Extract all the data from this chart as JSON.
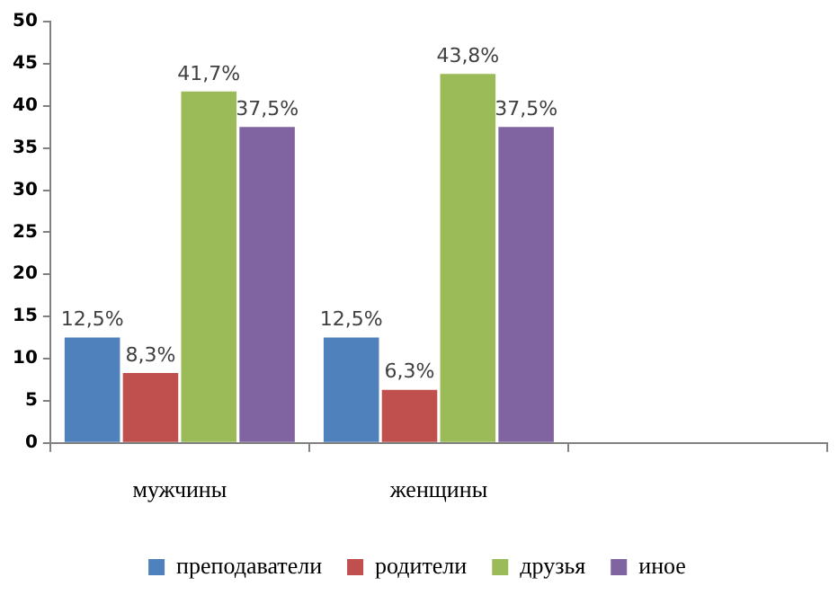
{
  "chart_data": {
    "type": "bar",
    "categories": [
      "мужчины",
      "женщины",
      null
    ],
    "series": [
      {
        "name": "преподаватели",
        "color": "#4f81bd",
        "values": [
          12.5,
          12.5,
          null
        ],
        "value_labels": [
          "12,5%",
          "12,5%",
          null
        ]
      },
      {
        "name": "родители",
        "color": "#c0504d",
        "values": [
          8.3,
          6.3,
          null
        ],
        "value_labels": [
          "8,3%",
          "6,3%",
          null
        ]
      },
      {
        "name": "друзья",
        "color": "#9bbb59",
        "values": [
          41.7,
          43.8,
          null
        ],
        "value_labels": [
          "41,7%",
          "43,8%",
          null
        ]
      },
      {
        "name": "иное",
        "color": "#8064a2",
        "values": [
          37.5,
          37.5,
          null
        ],
        "value_labels": [
          "37,5%",
          "37,5%",
          null
        ]
      }
    ],
    "ylim": [
      0,
      50
    ],
    "yticks": [
      0,
      5,
      10,
      15,
      20,
      25,
      30,
      35,
      40,
      45,
      50
    ],
    "grid": false,
    "legend": "bottom"
  }
}
